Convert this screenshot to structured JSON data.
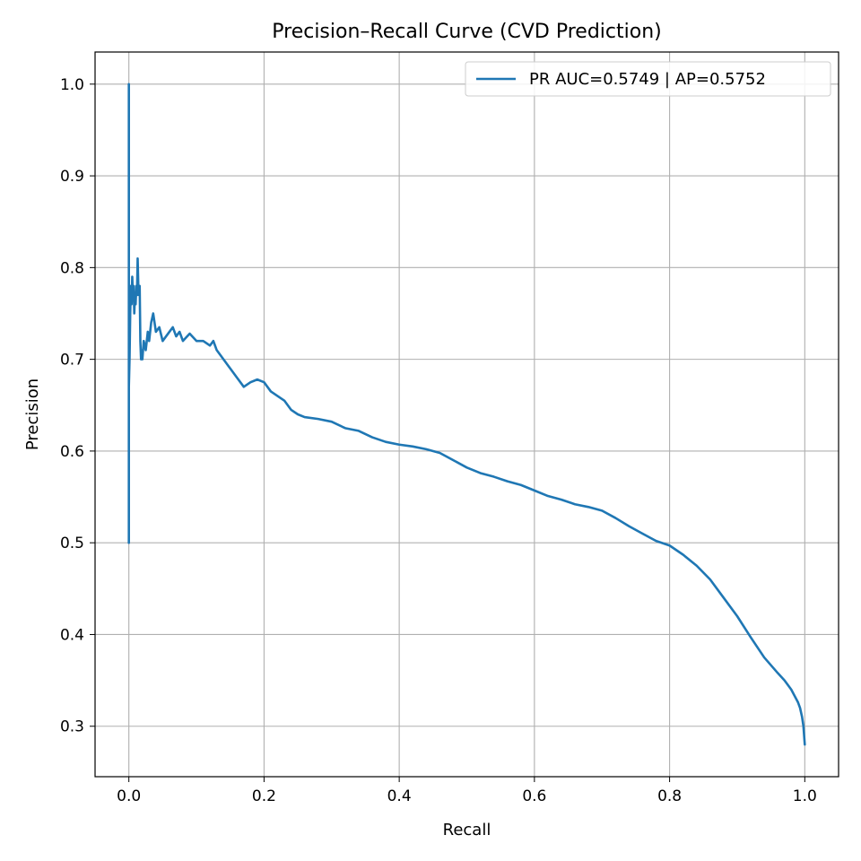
{
  "chart_data": {
    "type": "line",
    "title": "Precision–Recall Curve (CVD Prediction)",
    "xlabel": "Recall",
    "ylabel": "Precision",
    "xlim": [
      -0.05,
      1.05
    ],
    "ylim": [
      0.245,
      1.035
    ],
    "xticks": [
      0.0,
      0.2,
      0.4,
      0.6,
      0.8,
      1.0
    ],
    "xtick_labels": [
      "0.0",
      "0.2",
      "0.4",
      "0.6",
      "0.8",
      "1.0"
    ],
    "yticks": [
      0.3,
      0.4,
      0.5,
      0.6,
      0.7,
      0.8,
      0.9,
      1.0
    ],
    "ytick_labels": [
      "0.3",
      "0.4",
      "0.5",
      "0.6",
      "0.7",
      "0.8",
      "0.9",
      "1.0"
    ],
    "grid": true,
    "legend": {
      "position": "top-right"
    },
    "series": [
      {
        "name": "PR AUC=0.5749 | AP=0.5752",
        "color": "#1f77b4",
        "x": [
          0.0,
          0.0,
          0.0,
          0.0,
          0.001,
          0.002,
          0.003,
          0.004,
          0.005,
          0.006,
          0.007,
          0.008,
          0.009,
          0.01,
          0.011,
          0.012,
          0.013,
          0.014,
          0.015,
          0.016,
          0.017,
          0.018,
          0.019,
          0.02,
          0.022,
          0.025,
          0.028,
          0.03,
          0.033,
          0.036,
          0.04,
          0.045,
          0.05,
          0.055,
          0.06,
          0.065,
          0.07,
          0.075,
          0.08,
          0.09,
          0.1,
          0.11,
          0.12,
          0.125,
          0.13,
          0.14,
          0.15,
          0.16,
          0.17,
          0.18,
          0.19,
          0.2,
          0.21,
          0.22,
          0.23,
          0.24,
          0.25,
          0.26,
          0.28,
          0.3,
          0.32,
          0.34,
          0.36,
          0.38,
          0.4,
          0.42,
          0.44,
          0.46,
          0.48,
          0.5,
          0.52,
          0.54,
          0.56,
          0.58,
          0.6,
          0.62,
          0.64,
          0.66,
          0.68,
          0.7,
          0.72,
          0.74,
          0.76,
          0.78,
          0.8,
          0.82,
          0.84,
          0.86,
          0.88,
          0.9,
          0.92,
          0.94,
          0.96,
          0.97,
          0.98,
          0.99,
          0.993,
          0.996,
          0.998,
          1.0
        ],
        "y": [
          1.0,
          0.5,
          0.67,
          0.67,
          0.7,
          0.75,
          0.78,
          0.76,
          0.79,
          0.77,
          0.78,
          0.75,
          0.77,
          0.76,
          0.78,
          0.77,
          0.81,
          0.78,
          0.77,
          0.78,
          0.72,
          0.7,
          0.71,
          0.7,
          0.72,
          0.71,
          0.73,
          0.72,
          0.74,
          0.75,
          0.73,
          0.735,
          0.72,
          0.725,
          0.73,
          0.735,
          0.725,
          0.73,
          0.72,
          0.728,
          0.72,
          0.72,
          0.715,
          0.72,
          0.71,
          0.7,
          0.69,
          0.68,
          0.67,
          0.675,
          0.678,
          0.675,
          0.665,
          0.66,
          0.655,
          0.645,
          0.64,
          0.637,
          0.635,
          0.632,
          0.625,
          0.622,
          0.615,
          0.61,
          0.607,
          0.605,
          0.602,
          0.598,
          0.59,
          0.582,
          0.576,
          0.572,
          0.567,
          0.563,
          0.557,
          0.551,
          0.547,
          0.542,
          0.539,
          0.535,
          0.527,
          0.518,
          0.51,
          0.502,
          0.497,
          0.487,
          0.475,
          0.46,
          0.44,
          0.42,
          0.397,
          0.375,
          0.358,
          0.35,
          0.34,
          0.326,
          0.32,
          0.31,
          0.3,
          0.28
        ]
      }
    ]
  }
}
